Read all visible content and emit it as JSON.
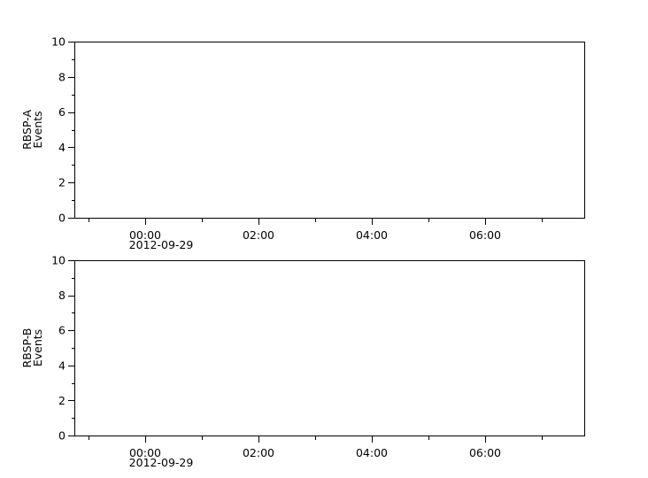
{
  "chart_data": [
    {
      "type": "line",
      "ylabel": [
        "RBSP-A",
        "Events"
      ],
      "xlim": [
        "2012-09-28T22:45",
        "2012-09-29T07:45"
      ],
      "ylim": [
        0,
        10
      ],
      "y_ticks": [
        "0",
        "2",
        "4",
        "6",
        "8",
        "10"
      ],
      "x_ticks": [
        "00:00",
        "02:00",
        "04:00",
        "06:00"
      ],
      "x_date_label": "2012-09-29",
      "series": [],
      "grid": false
    },
    {
      "type": "line",
      "ylabel": [
        "RBSP-B",
        "Events"
      ],
      "xlim": [
        "2012-09-28T22:45",
        "2012-09-29T07:45"
      ],
      "ylim": [
        0,
        10
      ],
      "y_ticks": [
        "0",
        "2",
        "4",
        "6",
        "8",
        "10"
      ],
      "x_ticks": [
        "00:00",
        "02:00",
        "04:00",
        "06:00"
      ],
      "x_date_label": "2012-09-29",
      "series": [],
      "grid": false
    }
  ],
  "colors": {
    "axis": "#000000",
    "background": "#ffffff"
  }
}
